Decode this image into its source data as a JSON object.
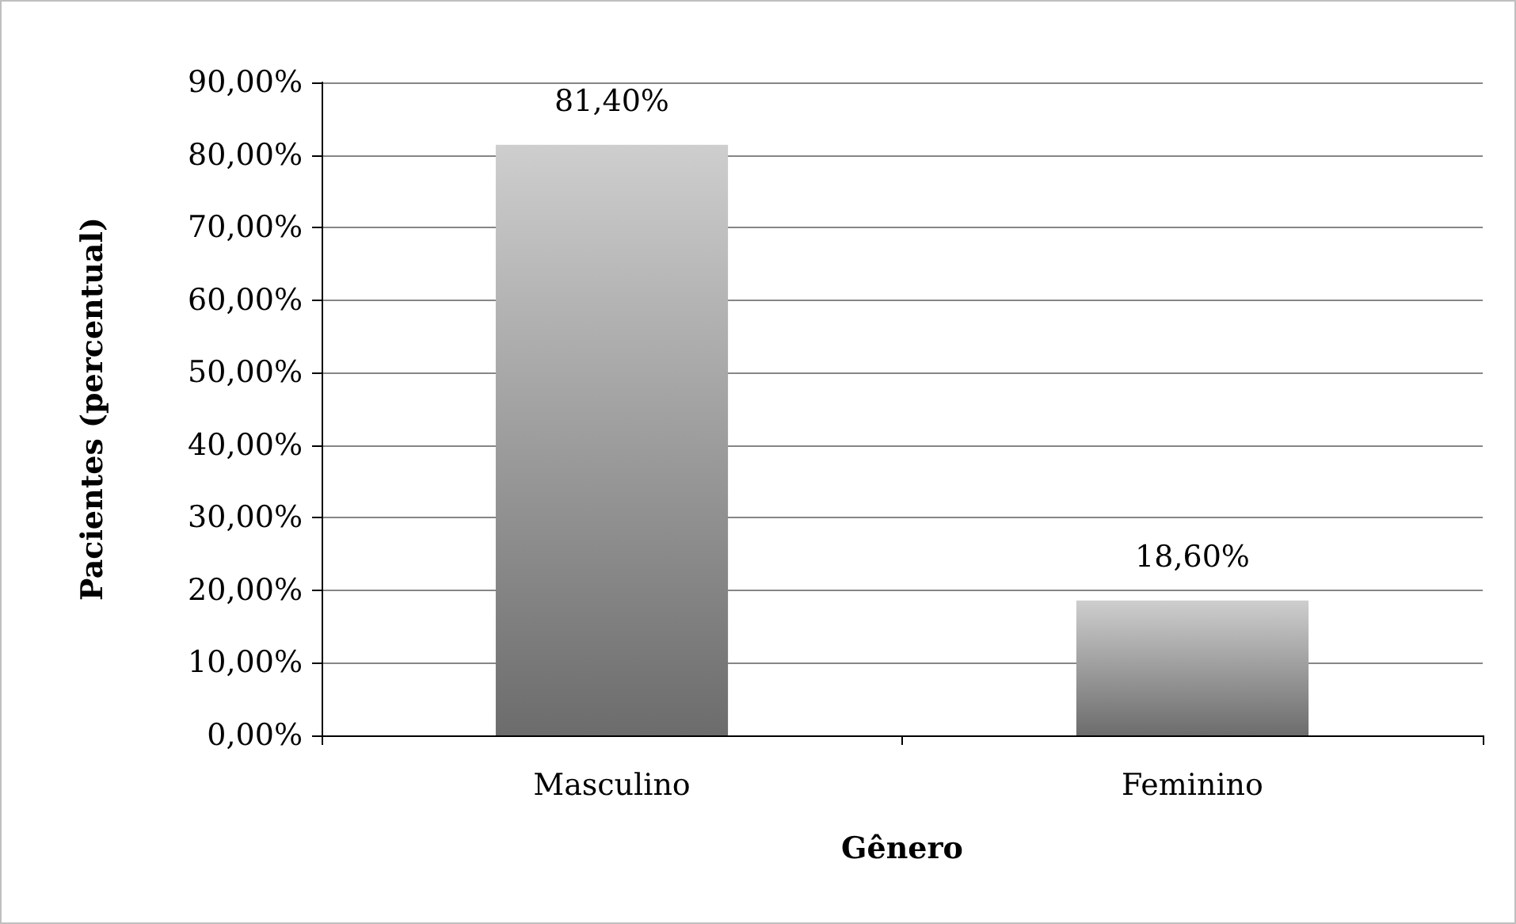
{
  "chart_data": {
    "type": "bar",
    "xlabel": "Gênero",
    "ylabel": "Pacientes (percentual)",
    "categories": [
      "Masculino",
      "Feminino"
    ],
    "values": [
      81.4,
      18.6
    ],
    "value_labels": [
      "81,40%",
      "18,60%"
    ],
    "color": "#a6a6a6",
    "ylim": [
      0,
      90
    ],
    "yticks": [
      {
        "value": 0,
        "label": "0,00%"
      },
      {
        "value": 10,
        "label": "10,00%"
      },
      {
        "value": 20,
        "label": "20,00%"
      },
      {
        "value": 30,
        "label": "30,00%"
      },
      {
        "value": 40,
        "label": "40,00%"
      },
      {
        "value": 50,
        "label": "50,00%"
      },
      {
        "value": 60,
        "label": "60,00%"
      },
      {
        "value": 70,
        "label": "70,00%"
      },
      {
        "value": 80,
        "label": "80,00%"
      },
      {
        "value": 90,
        "label": "90,00%"
      }
    ],
    "grid": true
  }
}
